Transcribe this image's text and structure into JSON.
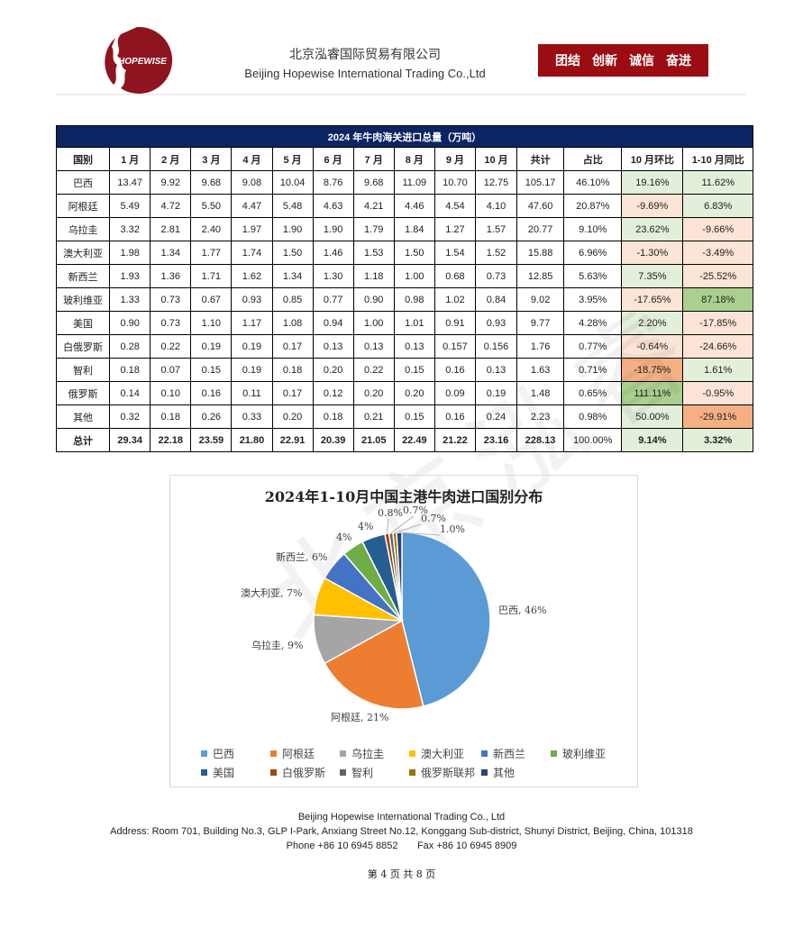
{
  "header": {
    "logo_text": "HOPEWISE",
    "company_cn": "北京泓睿国际贸易有限公司",
    "company_en": "Beijing Hopewise International Trading Co.,Ltd",
    "slogan": [
      "团结",
      "创新",
      "诚信",
      "奋进"
    ],
    "brand_color": "#9b0d12"
  },
  "watermark": "北京泓睿",
  "table": {
    "title": "2024 年牛肉海关进口总量（万吨）",
    "columns": [
      "国别",
      "1 月",
      "2 月",
      "3 月",
      "4 月",
      "5 月",
      "6 月",
      "7 月",
      "8 月",
      "9 月",
      "10 月",
      "共计",
      "占比",
      "10 月环比",
      "1-10 月同比"
    ],
    "rows": [
      {
        "cells": [
          "巴西",
          "13.47",
          "9.92",
          "9.68",
          "9.08",
          "10.04",
          "8.76",
          "9.68",
          "11.09",
          "10.70",
          "12.75",
          "105.17",
          "46.10%",
          "19.16%",
          "11.62%"
        ],
        "tones": [
          "up",
          "up"
        ]
      },
      {
        "cells": [
          "阿根廷",
          "5.49",
          "4.72",
          "5.50",
          "4.47",
          "5.48",
          "4.63",
          "4.21",
          "4.46",
          "4.54",
          "4.10",
          "47.60",
          "20.87%",
          "-9.69%",
          "6.83%"
        ],
        "tones": [
          "down",
          "up"
        ]
      },
      {
        "cells": [
          "乌拉圭",
          "3.32",
          "2.81",
          "2.40",
          "1.97",
          "1.90",
          "1.90",
          "1.79",
          "1.84",
          "1.27",
          "1.57",
          "20.77",
          "9.10%",
          "23.62%",
          "-9.66%"
        ],
        "tones": [
          "up",
          "down"
        ]
      },
      {
        "cells": [
          "澳大利亚",
          "1.98",
          "1.34",
          "1.77",
          "1.74",
          "1.50",
          "1.46",
          "1.53",
          "1.50",
          "1.54",
          "1.52",
          "15.88",
          "6.96%",
          "-1.30%",
          "-3.49%"
        ],
        "tones": [
          "down",
          "down"
        ]
      },
      {
        "cells": [
          "新西兰",
          "1.93",
          "1.36",
          "1.71",
          "1.62",
          "1.34",
          "1.30",
          "1.18",
          "1.00",
          "0.68",
          "0.73",
          "12.85",
          "5.63%",
          "7.35%",
          "-25.52%"
        ],
        "tones": [
          "up",
          "down"
        ]
      },
      {
        "cells": [
          "玻利维亚",
          "1.33",
          "0.73",
          "0.67",
          "0.93",
          "0.85",
          "0.77",
          "0.90",
          "0.98",
          "1.02",
          "0.84",
          "9.02",
          "3.95%",
          "-17.65%",
          "87.18%"
        ],
        "tones": [
          "down",
          "sup"
        ]
      },
      {
        "cells": [
          "美国",
          "0.90",
          "0.73",
          "1.10",
          "1.17",
          "1.08",
          "0.94",
          "1.00",
          "1.01",
          "0.91",
          "0.93",
          "9.77",
          "4.28%",
          "2.20%",
          "-17.85%"
        ],
        "tones": [
          "up",
          "down"
        ]
      },
      {
        "cells": [
          "白俄罗斯",
          "0.28",
          "0.22",
          "0.19",
          "0.19",
          "0.17",
          "0.13",
          "0.13",
          "0.13",
          "0.157",
          "0.156",
          "1.76",
          "0.77%",
          "-0.64%",
          "-24.66%"
        ],
        "tones": [
          "down",
          "down"
        ]
      },
      {
        "cells": [
          "智利",
          "0.18",
          "0.07",
          "0.15",
          "0.19",
          "0.18",
          "0.20",
          "0.22",
          "0.15",
          "0.16",
          "0.13",
          "1.63",
          "0.71%",
          "-18.75%",
          "1.61%"
        ],
        "tones": [
          "sdown",
          "up"
        ]
      },
      {
        "cells": [
          "俄罗斯",
          "0.14",
          "0.10",
          "0.16",
          "0.11",
          "0.17",
          "0.12",
          "0.20",
          "0.20",
          "0.09",
          "0.19",
          "1.48",
          "0.65%",
          "111.11%",
          "-0.95%"
        ],
        "tones": [
          "sup",
          "down"
        ]
      },
      {
        "cells": [
          "其他",
          "0.32",
          "0.18",
          "0.26",
          "0.33",
          "0.20",
          "0.18",
          "0.21",
          "0.15",
          "0.16",
          "0.24",
          "2.23",
          "0.98%",
          "50.00%",
          "-29.91%"
        ],
        "tones": [
          "up",
          "sdown"
        ]
      }
    ],
    "total": {
      "cells": [
        "总计",
        "29.34",
        "22.18",
        "23.59",
        "21.80",
        "22.91",
        "20.39",
        "21.05",
        "22.49",
        "21.22",
        "23.16",
        "228.13",
        "100.00%",
        "9.14%",
        "3.32%"
      ],
      "tones": [
        "up",
        "up"
      ]
    },
    "tone_colors": {
      "up": "#e2efda",
      "down": "#fce4d6",
      "sup": "#a9d08e",
      "sdown": "#f4b084"
    }
  },
  "chart_data": {
    "type": "pie",
    "title": "2024年1-10月中国主港牛肉进口国别分布",
    "categories": [
      "巴西",
      "阿根廷",
      "乌拉圭",
      "澳大利亚",
      "新西兰",
      "玻利维亚",
      "美国",
      "白俄罗斯",
      "智利",
      "俄罗斯联邦",
      "其他"
    ],
    "values": [
      46.1,
      20.87,
      9.1,
      6.96,
      5.63,
      3.95,
      4.28,
      0.77,
      0.71,
      0.65,
      0.98
    ],
    "labels": [
      "巴西, 46%",
      "阿根廷, 21%",
      "乌拉圭, 9%",
      "澳大利亚, 7%",
      "新西兰, 6%",
      "4%",
      "4%",
      "0.8%",
      "0.7%",
      "0.7%",
      "1.0%"
    ],
    "colors": [
      "#5b9bd5",
      "#ed7d31",
      "#a5a5a5",
      "#ffc000",
      "#4472c4",
      "#70ad47",
      "#255e91",
      "#9e480e",
      "#636363",
      "#997300",
      "#264478"
    ],
    "start": "top",
    "direction": "clockwise",
    "legend": "bottom"
  },
  "footer": {
    "company": "Beijing Hopewise International Trading Co., Ltd",
    "address": "Address: Room 701, Building No.3, GLP I-Park, Anxiang Street No.12, Konggang Sub-district, Shunyi District, Beijing, China, 101318",
    "phone": "Phone +86 10 6945 8852",
    "fax": "Fax +86 10 6945 8909",
    "page": "第 4 页 共 8 页"
  }
}
